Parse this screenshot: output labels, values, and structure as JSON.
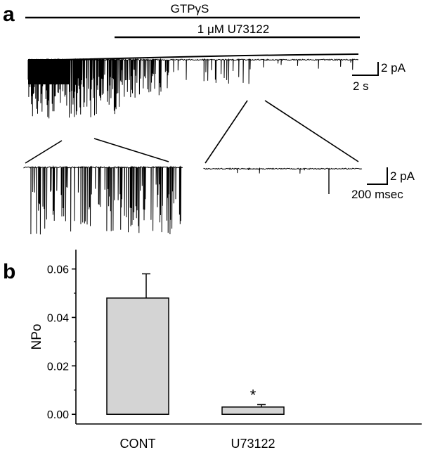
{
  "panel_a": {
    "label": "a",
    "drug_bars": [
      "GTPγS",
      "1 μM U73122"
    ],
    "main_scale": {
      "current": "2 pA",
      "time": "2 s"
    },
    "inset_scale": {
      "current": "2 pA",
      "time": "200 msec"
    }
  },
  "panel_b": {
    "label": "b",
    "significance": "*"
  },
  "chart_data": {
    "type": "bar",
    "title": "",
    "xlabel": "",
    "ylabel": "NPo",
    "categories": [
      "CONT",
      "U73122"
    ],
    "values": [
      0.048,
      0.003
    ],
    "error": [
      0.01,
      0.001
    ],
    "ylim": [
      -0.004,
      0.068
    ],
    "yticks": [
      0.0,
      0.02,
      0.04,
      0.06
    ],
    "ytick_labels": [
      "0.00",
      "0.02",
      "0.04",
      "0.06"
    ],
    "annotations": [
      {
        "category": "U73122",
        "text": "*"
      }
    ],
    "grid": false,
    "legend": "none",
    "bar_fill": "#d4d4d4"
  }
}
